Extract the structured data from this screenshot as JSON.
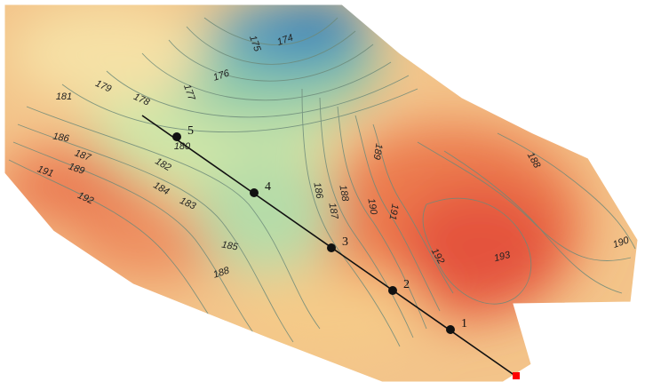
{
  "map": {
    "contour_labels": [
      "174",
      "175",
      "176",
      "177",
      "178",
      "179",
      "180",
      "181",
      "182",
      "183",
      "184",
      "185",
      "186",
      "186",
      "187",
      "187",
      "188",
      "188",
      "188",
      "189",
      "189",
      "190",
      "190",
      "191",
      "191",
      "192",
      "192",
      "193"
    ],
    "profile_points": [
      "1",
      "2",
      "3",
      "4",
      "5"
    ],
    "colors": {
      "low": "#2f7fb8",
      "mid": "#b8dca0",
      "high": "#e8553a",
      "contour": "#6d8a7a",
      "profile_line": "#111111",
      "end_marker": "#ff0000"
    }
  }
}
